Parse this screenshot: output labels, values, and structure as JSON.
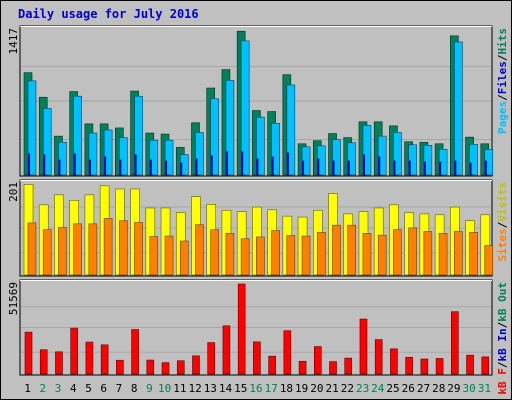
{
  "title": "Daily usage for July 2016",
  "colors": {
    "hits": "#00805c",
    "files": "#00c0ff",
    "pages": "#00e0ff",
    "visits": "#ffff00",
    "sites": "#ff8000",
    "kb_f": "#ff0000",
    "kb_in": "#0000ff",
    "kb_out": "#00805c"
  },
  "chart_data": [
    {
      "type": "bar",
      "panel": "hits-files-pages",
      "ymax_label": "1417",
      "ymax": 1417,
      "right_labels": [
        {
          "text": "Pages",
          "color": "#00c0ff"
        },
        {
          "text": "/",
          "color": "#000000"
        },
        {
          "text": "Files",
          "color": "#0000cc"
        },
        {
          "text": "/",
          "color": "#000000"
        },
        {
          "text": "Hits",
          "color": "#00805c"
        }
      ],
      "categories": [
        "1",
        "2",
        "3",
        "4",
        "5",
        "6",
        "7",
        "8",
        "9",
        "10",
        "11",
        "12",
        "13",
        "14",
        "15",
        "16",
        "17",
        "18",
        "19",
        "20",
        "21",
        "22",
        "23",
        "24",
        "25",
        "26",
        "27",
        "28",
        "29",
        "30",
        "31"
      ],
      "series": [
        {
          "name": "Hits",
          "values": [
            1000,
            760,
            380,
            815,
            500,
            500,
            460,
            820,
            410,
            400,
            270,
            510,
            850,
            1030,
            1405,
            630,
            620,
            980,
            305,
            335,
            405,
            365,
            520,
            520,
            480,
            325,
            320,
            305,
            1360,
            370,
            305
          ]
        },
        {
          "name": "Files",
          "values": [
            920,
            650,
            320,
            770,
            410,
            440,
            365,
            770,
            340,
            340,
            200,
            415,
            745,
            925,
            1310,
            565,
            505,
            880,
            275,
            285,
            345,
            315,
            485,
            380,
            415,
            295,
            290,
            250,
            1300,
            300,
            250
          ]
        }
      ],
      "pages_values": [
        210,
        200,
        150,
        210,
        150,
        180,
        150,
        200,
        150,
        140,
        120,
        160,
        190,
        230,
        230,
        160,
        180,
        220,
        140,
        160,
        140,
        140,
        200,
        180,
        140,
        140,
        130,
        130,
        140,
        120,
        140
      ]
    },
    {
      "type": "bar",
      "panel": "visits-sites",
      "ymax_label": "201",
      "ymax": 201,
      "right_labels": [
        {
          "text": "Sites",
          "color": "#ff8000"
        },
        {
          "text": "/",
          "color": "#000000"
        },
        {
          "text": "Visits",
          "color": "#c0c000"
        }
      ],
      "categories": [
        "1",
        "2",
        "3",
        "4",
        "5",
        "6",
        "7",
        "8",
        "9",
        "10",
        "11",
        "12",
        "13",
        "14",
        "15",
        "16",
        "17",
        "18",
        "19",
        "20",
        "21",
        "22",
        "23",
        "24",
        "25",
        "26",
        "27",
        "28",
        "29",
        "30",
        "31"
      ],
      "series": [
        {
          "name": "Visits",
          "values": [
            200,
            155,
            177,
            165,
            177,
            197,
            190,
            190,
            148,
            148,
            138,
            173,
            156,
            143,
            140,
            150,
            144,
            130,
            128,
            143,
            180,
            135,
            140,
            148,
            155,
            138,
            135,
            133,
            150,
            120,
            133
          ]
        },
        {
          "name": "Sites",
          "values": [
            115,
            100,
            105,
            113,
            113,
            125,
            120,
            116,
            85,
            86,
            75,
            111,
            100,
            92,
            80,
            84,
            98,
            87,
            86,
            94,
            110,
            110,
            92,
            88,
            100,
            104,
            96,
            92,
            96,
            94,
            65
          ]
        }
      ]
    },
    {
      "type": "bar",
      "panel": "kbytes",
      "ymax_label": "51569",
      "ymax": 51569,
      "right_labels": [
        {
          "text": "kB F",
          "color": "#ff0000"
        },
        {
          "text": "/",
          "color": "#000000"
        },
        {
          "text": "kB In",
          "color": "#0000cc"
        },
        {
          "text": "/",
          "color": "#000000"
        },
        {
          "text": "kB Out",
          "color": "#00805c"
        }
      ],
      "categories": [
        "1",
        "2",
        "3",
        "4",
        "5",
        "6",
        "7",
        "8",
        "9",
        "10",
        "11",
        "12",
        "13",
        "14",
        "15",
        "16",
        "17",
        "18",
        "19",
        "20",
        "21",
        "22",
        "23",
        "24",
        "25",
        "26",
        "27",
        "28",
        "29",
        "30",
        "31"
      ],
      "series": [
        {
          "name": "kB F",
          "values": [
            24000,
            13900,
            12700,
            26300,
            18300,
            16700,
            7900,
            25500,
            8000,
            6500,
            7600,
            10400,
            18000,
            27600,
            51569,
            18400,
            10200,
            24800,
            7300,
            15700,
            7100,
            9100,
            31500,
            19700,
            14400,
            9600,
            8600,
            8900,
            35700,
            10800,
            9800
          ]
        }
      ]
    }
  ],
  "day_label_colors": {
    "weekday": "#000000",
    "weekend": "#00805c"
  },
  "weekend_days": [
    "2",
    "3",
    "9",
    "10",
    "16",
    "17",
    "23",
    "24",
    "30",
    "31"
  ]
}
